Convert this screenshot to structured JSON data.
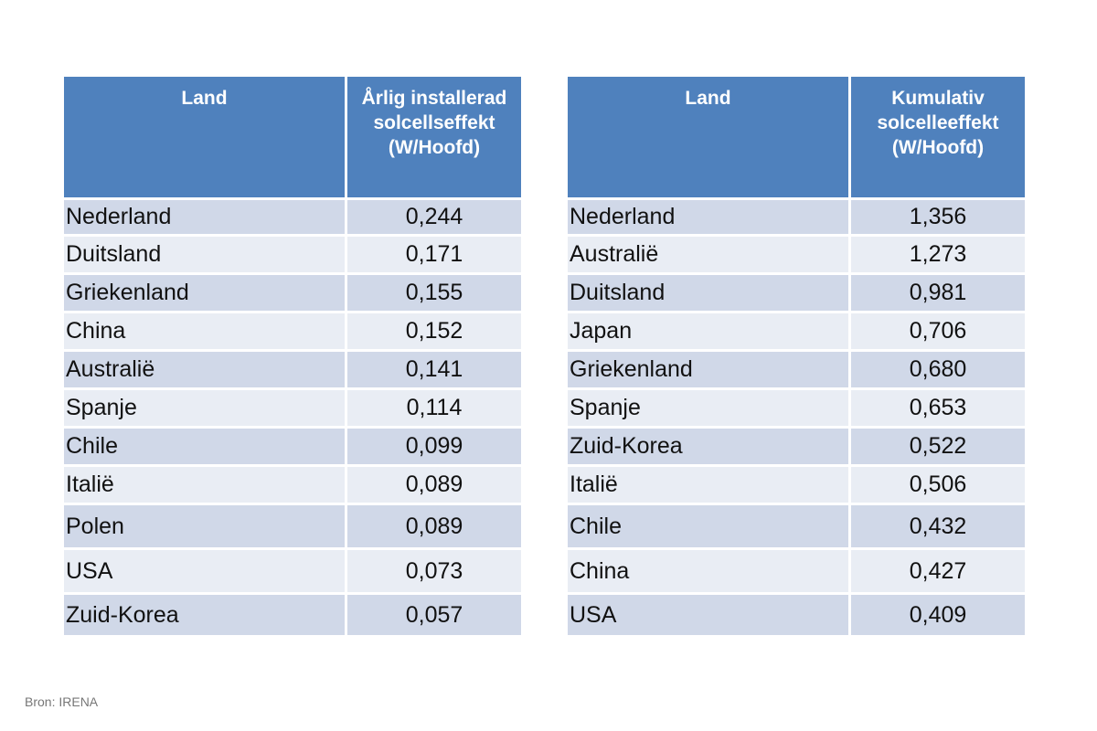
{
  "left_table": {
    "headers": [
      "Land",
      "Årlig installerad solcellseffekt (W/Hoofd)"
    ],
    "rows": [
      [
        "Nederland",
        "0,244"
      ],
      [
        "Duitsland",
        "0,171"
      ],
      [
        "Griekenland",
        "0,155"
      ],
      [
        "China",
        "0,152"
      ],
      [
        "Australië",
        "0,141"
      ],
      [
        "Spanje",
        "0,114"
      ],
      [
        "Chile",
        "0,099"
      ],
      [
        "Italië",
        "0,089"
      ],
      [
        "Polen",
        "0,089"
      ],
      [
        "USA",
        "0,073"
      ],
      [
        "Zuid-Korea",
        "0,057"
      ]
    ]
  },
  "right_table": {
    "headers": [
      "Land",
      "Kumulativ solcelleeffekt (W/Hoofd)"
    ],
    "rows": [
      [
        "Nederland",
        "1,356"
      ],
      [
        "Australië",
        "1,273"
      ],
      [
        "Duitsland",
        "0,981"
      ],
      [
        "Japan",
        "0,706"
      ],
      [
        "Griekenland",
        "0,680"
      ],
      [
        "Spanje",
        "0,653"
      ],
      [
        "Zuid-Korea",
        "0,522"
      ],
      [
        "Italië",
        "0,506"
      ],
      [
        "Chile",
        "0,432"
      ],
      [
        "China",
        "0,427"
      ],
      [
        "USA",
        "0,409"
      ]
    ]
  },
  "source": "Bron: IRENA",
  "colors": {
    "header_bg": "#4f81bd",
    "row_odd": "#d0d8e8",
    "row_even": "#e9edf4"
  }
}
